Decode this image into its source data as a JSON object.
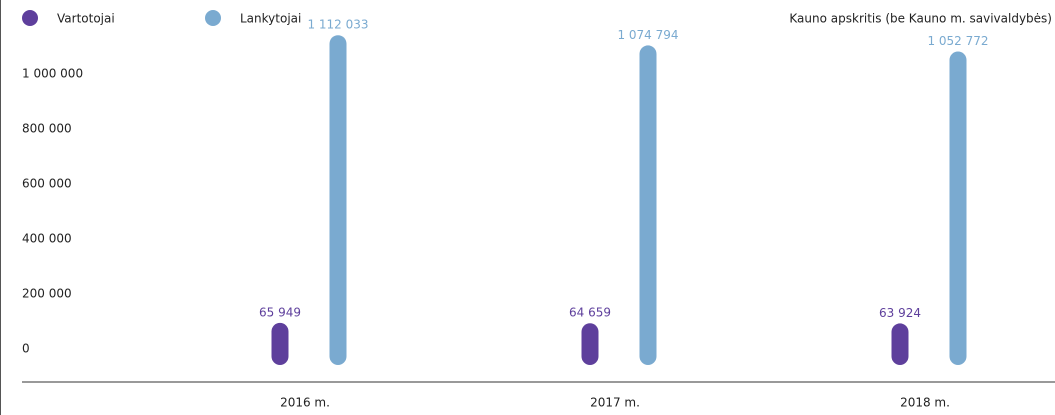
{
  "chart_data": {
    "type": "bar",
    "subtitle": "Kauno apskritis (be Kauno m. savivaldybės)",
    "categories": [
      "2016 m.",
      "2017 m.",
      "2018 m."
    ],
    "series": [
      {
        "name": "Vartotojai",
        "color": "#5e3f9c",
        "values": [
          65949,
          64659,
          63924
        ],
        "value_labels": [
          "65 949",
          "64 659",
          "63 924"
        ]
      },
      {
        "name": "Lankytojai",
        "color": "#7aaad0",
        "values": [
          1112033,
          1074794,
          1052772
        ],
        "value_labels": [
          "1 112 033",
          "1 074 794",
          "1 052 772"
        ]
      }
    ],
    "ylim": [
      0,
      1000000
    ],
    "yticks": [
      0,
      {
        "value": 200000,
        "label": "200 000"
      },
      {
        "value": 400000,
        "label": "400 000"
      },
      {
        "value": 600000,
        "label": "600 000"
      },
      {
        "value": 800000,
        "label": "800 000"
      },
      {
        "value": 1000000,
        "label": "1 000 000"
      }
    ],
    "grid": false
  }
}
